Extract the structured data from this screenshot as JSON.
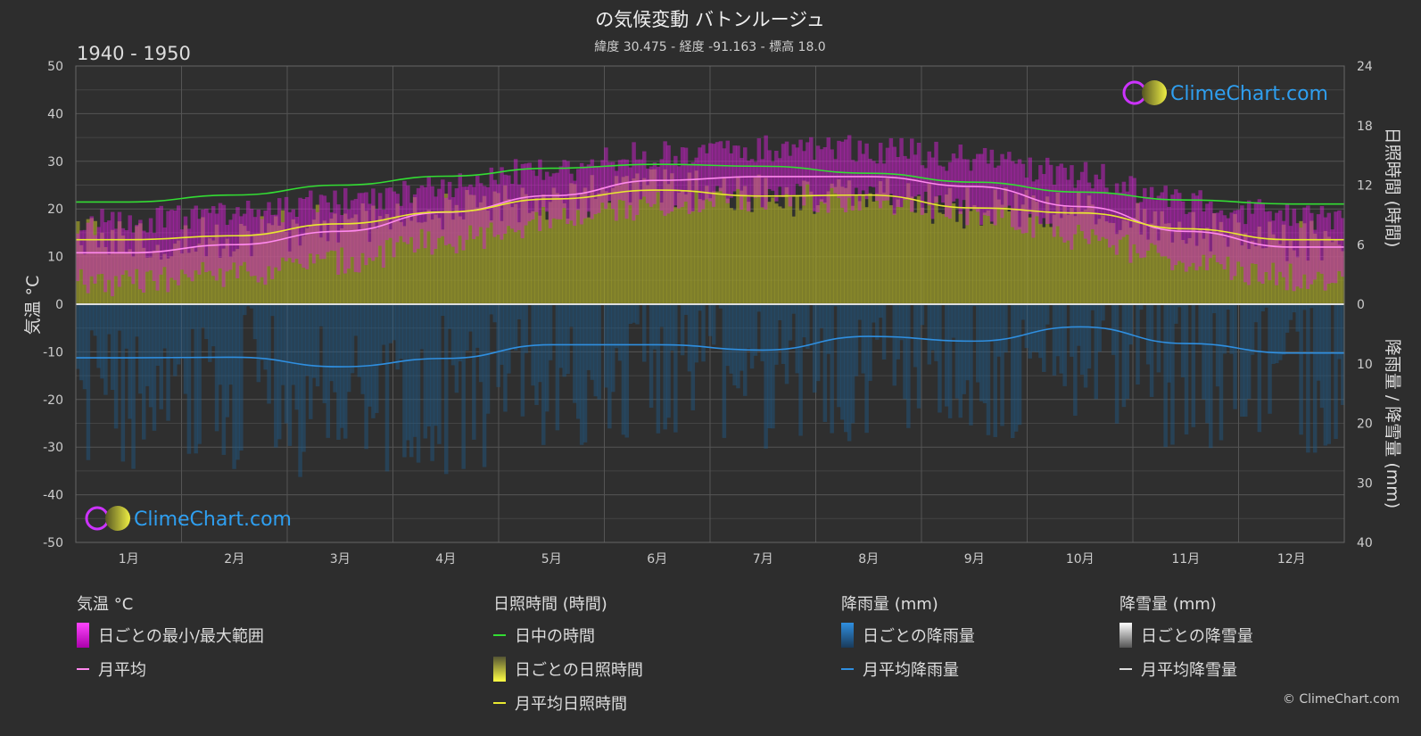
{
  "header": {
    "title": "の気候変動 バトンルージュ",
    "subtitle": "緯度 30.475 - 経度 -91.163 - 標高 18.0",
    "period": "1940 - 1950"
  },
  "brand": "ClimeChart.com",
  "copyright": "© ClimeChart.com",
  "colors": {
    "background": "#2d2d2d",
    "temp_range": "#d020d0",
    "temp_mean": "#ff88ee",
    "daylight": "#33dd33",
    "sunshine_fill": "#9a9a2a",
    "sunshine_mean": "#e8e830",
    "rain_fill": "#1e5a8a",
    "rain_mean": "#2f8fe0",
    "snow_mean": "#dddddd"
  },
  "chart_data": {
    "type": "line",
    "categories": [
      "1月",
      "2月",
      "3月",
      "4月",
      "5月",
      "6月",
      "7月",
      "8月",
      "9月",
      "10月",
      "11月",
      "12月"
    ],
    "y_left": {
      "label": "気温 °C",
      "ticks": [
        50,
        40,
        30,
        20,
        10,
        0,
        -10,
        -20,
        -30,
        -40,
        -50
      ],
      "range": [
        -50,
        50
      ]
    },
    "y_right_top": {
      "label": "日照時間 (時間)",
      "ticks": [
        24,
        18,
        12,
        6,
        0
      ],
      "range": [
        0,
        24
      ]
    },
    "y_right_bottom": {
      "label": "降雨量 / 降雪量 (mm)",
      "ticks": [
        0,
        10,
        20,
        30,
        40
      ],
      "range": [
        0,
        40
      ]
    },
    "series": {
      "temp_max": {
        "values": [
          17.5,
          19,
          21.5,
          25,
          28.5,
          31.5,
          32.5,
          32.5,
          30.5,
          27,
          21.5,
          18.5
        ]
      },
      "temp_min": {
        "values": [
          4.5,
          6.5,
          9,
          13.5,
          17.5,
          21,
          22.5,
          22,
          19.5,
          14,
          8.5,
          5.5
        ]
      },
      "temp_mean": {
        "name": "月平均",
        "values": [
          10.8,
          12.5,
          15.3,
          19.3,
          22.8,
          26,
          26.8,
          26.8,
          24.7,
          20.5,
          15.3,
          12
        ]
      },
      "daylight": {
        "name": "日中の時間",
        "values": [
          10.3,
          11,
          12,
          12.9,
          13.7,
          14.1,
          13.9,
          13.2,
          12.3,
          11.3,
          10.5,
          10.1
        ]
      },
      "sunshine_mean": {
        "name": "月平均日照時間",
        "values": [
          6.5,
          6.9,
          8.1,
          9.3,
          10.6,
          11.5,
          10.9,
          11,
          9.7,
          9.2,
          7.6,
          6.5
        ]
      },
      "rain_mean": {
        "name": "月平均降雨量",
        "values": [
          9,
          8.9,
          10.5,
          9.1,
          6.8,
          6.8,
          7.7,
          5.4,
          6.2,
          3.8,
          6.6,
          8.2
        ]
      }
    }
  },
  "legend": {
    "temperature": {
      "title": "気温 °C",
      "items": [
        "日ごとの最小/最大範囲",
        "月平均"
      ]
    },
    "sunshine": {
      "title": "日照時間 (時間)",
      "items": [
        "日中の時間",
        "日ごとの日照時間",
        "月平均日照時間"
      ]
    },
    "rain": {
      "title": "降雨量 (mm)",
      "items": [
        "日ごとの降雨量",
        "月平均降雨量"
      ]
    },
    "snow": {
      "title": "降雪量 (mm)",
      "items": [
        "日ごとの降雪量",
        "月平均降雪量"
      ]
    }
  }
}
